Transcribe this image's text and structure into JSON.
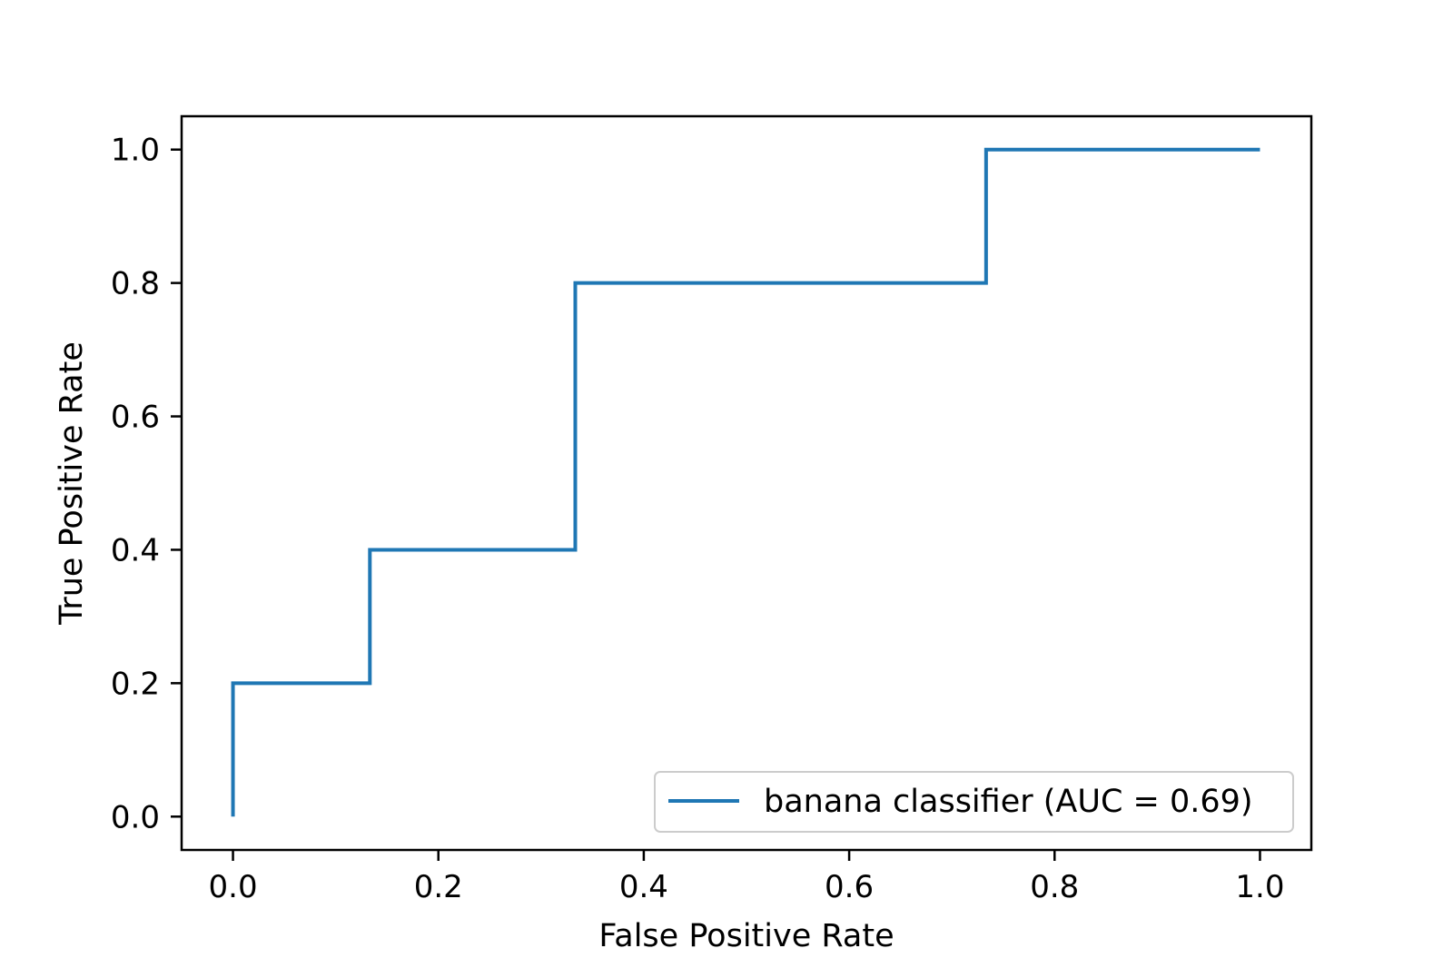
{
  "chart_data": {
    "type": "line",
    "title": "",
    "xlabel": "False Positive Rate",
    "ylabel": "True Positive Rate",
    "xlim": [
      -0.05,
      1.05
    ],
    "ylim": [
      -0.05,
      1.05
    ],
    "x_ticks": [
      "0.0",
      "0.2",
      "0.4",
      "0.6",
      "0.8",
      "1.0"
    ],
    "y_ticks": [
      "0.0",
      "0.2",
      "0.4",
      "0.6",
      "0.8",
      "1.0"
    ],
    "grid": false,
    "legend_position": "lower right",
    "series": [
      {
        "name": "banana classifier (AUC = 0.69)",
        "color": "#1f77b4",
        "step": true,
        "x": [
          0.0,
          0.0,
          0.1333,
          0.1333,
          0.3333,
          0.3333,
          0.7333,
          0.7333,
          1.0
        ],
        "y": [
          0.0,
          0.2,
          0.2,
          0.4,
          0.4,
          0.8,
          0.8,
          1.0,
          1.0
        ]
      }
    ]
  }
}
